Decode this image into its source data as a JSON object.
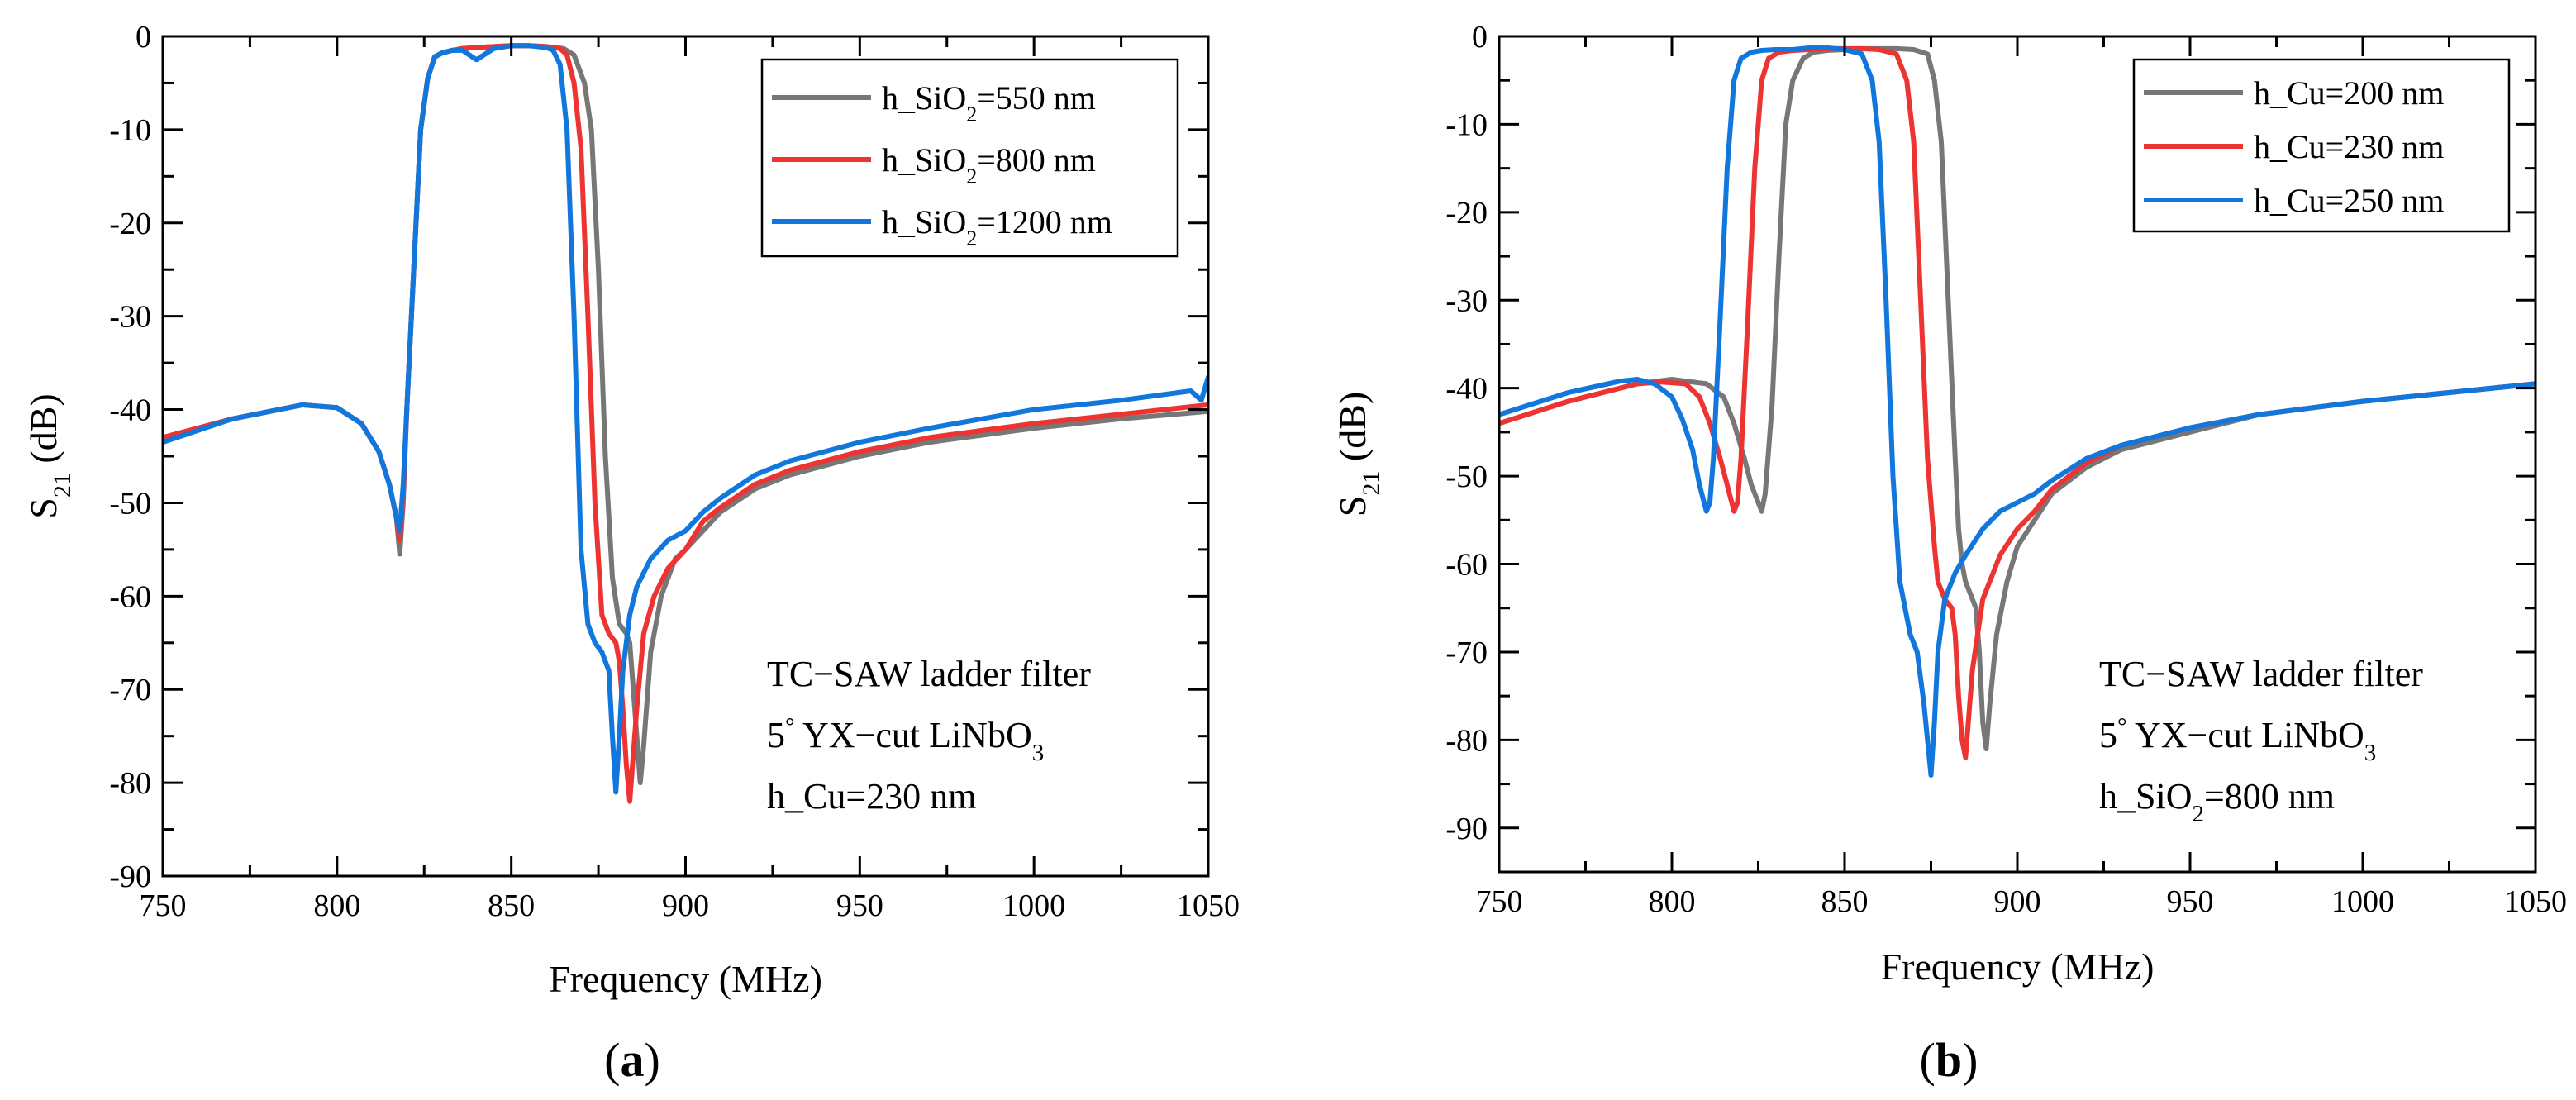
{
  "chart_data": [
    {
      "panel_label": "a",
      "type": "line",
      "title": "",
      "xlabel": "Frequency (MHz)",
      "ylabel_main": "S",
      "ylabel_sub": "21",
      "ylabel_unit": " (dB)",
      "xlim": [
        750,
        1050
      ],
      "ylim": [
        -90,
        0
      ],
      "xticks": [
        750,
        800,
        850,
        900,
        950,
        1000,
        1050
      ],
      "yticks": [
        0,
        -10,
        -20,
        -30,
        -40,
        -50,
        -60,
        -70,
        -80,
        -90
      ],
      "grid": false,
      "legend_position": "top-right",
      "annotation": [
        {
          "parts": [
            {
              "t": "TC−SAW ladder filter"
            }
          ]
        },
        {
          "parts": [
            {
              "t": "5"
            },
            {
              "t": "°",
              "sup": true
            },
            {
              "t": " YX−cut LiNbO"
            },
            {
              "t": "3",
              "sub": true
            }
          ]
        },
        {
          "parts": [
            {
              "t": "h_Cu=230 nm"
            }
          ]
        }
      ],
      "series": [
        {
          "legend": [
            {
              "t": "h_SiO"
            },
            {
              "t": "2",
              "sub": true
            },
            {
              "t": "=550 nm"
            }
          ],
          "color": "#777777",
          "x": [
            750,
            770,
            790,
            800,
            807,
            812,
            815,
            817,
            818,
            819,
            820,
            822,
            824,
            826,
            828,
            830,
            833,
            836,
            840,
            845,
            850,
            855,
            860,
            865,
            868,
            871,
            873,
            875,
            877,
            879,
            881,
            883,
            884,
            885,
            886,
            887,
            888,
            890,
            893,
            897,
            900,
            905,
            910,
            920,
            930,
            950,
            970,
            1000,
            1025,
            1050
          ],
          "y": [
            -43,
            -41,
            -39.5,
            -39.8,
            -41.5,
            -44.5,
            -48,
            -51.5,
            -55.5,
            -50,
            -40,
            -25,
            -10,
            -4.5,
            -2.2,
            -1.8,
            -1.5,
            -1.3,
            -1.2,
            -1.1,
            -1,
            -1,
            -1.1,
            -1.3,
            -2,
            -5,
            -10,
            -25,
            -45,
            -58,
            -63,
            -64,
            -65,
            -70,
            -75,
            -80,
            -76,
            -66,
            -60,
            -56,
            -55,
            -53,
            -51,
            -48.5,
            -47,
            -45,
            -43.5,
            -42,
            -41,
            -40.2
          ]
        },
        {
          "legend": [
            {
              "t": "h_SiO"
            },
            {
              "t": "2",
              "sub": true
            },
            {
              "t": "=800 nm"
            }
          ],
          "color": "#ee3333",
          "x": [
            750,
            770,
            790,
            800,
            807,
            812,
            815,
            817,
            818,
            819,
            820,
            822,
            824,
            826,
            828,
            830,
            833,
            836,
            840,
            845,
            850,
            855,
            860,
            864,
            866,
            868,
            870,
            872,
            874,
            876,
            878,
            880,
            881,
            882,
            883,
            884,
            886,
            888,
            891,
            895,
            900,
            905,
            910,
            920,
            930,
            950,
            970,
            1000,
            1025,
            1050
          ],
          "y": [
            -43,
            -41,
            -39.5,
            -39.8,
            -41.5,
            -44.5,
            -48,
            -51.5,
            -54,
            -49,
            -40,
            -25,
            -10,
            -4.5,
            -2.2,
            -1.8,
            -1.5,
            -1.3,
            -1.2,
            -1.1,
            -1,
            -1,
            -1.1,
            -1.3,
            -2,
            -5,
            -12,
            -30,
            -50,
            -62,
            -64,
            -65,
            -67,
            -72,
            -78,
            -82,
            -72,
            -64,
            -60,
            -57,
            -55,
            -52,
            -50.5,
            -48,
            -46.5,
            -44.5,
            -43,
            -41.5,
            -40.5,
            -39.5
          ]
        },
        {
          "legend": [
            {
              "t": "h_SiO"
            },
            {
              "t": "2",
              "sub": true
            },
            {
              "t": "=1200 nm"
            }
          ],
          "color": "#1177dd",
          "x": [
            750,
            770,
            790,
            800,
            807,
            812,
            815,
            817,
            818,
            819,
            820,
            822,
            824,
            826,
            828,
            830,
            833,
            836,
            840,
            845,
            850,
            855,
            860,
            862,
            864,
            866,
            868,
            870,
            872,
            874,
            876,
            878,
            879,
            880,
            881,
            882,
            884,
            886,
            890,
            895,
            900,
            905,
            910,
            920,
            930,
            950,
            970,
            1000,
            1025,
            1045,
            1048,
            1050
          ],
          "y": [
            -43.5,
            -41,
            -39.5,
            -39.8,
            -41.5,
            -44.5,
            -48,
            -51.5,
            -53,
            -48,
            -40,
            -25,
            -10,
            -4.5,
            -2.2,
            -1.8,
            -1.5,
            -1.5,
            -2.5,
            -1.3,
            -1,
            -1,
            -1.2,
            -1.5,
            -3,
            -10,
            -30,
            -55,
            -63,
            -65,
            -66,
            -68,
            -75,
            -81,
            -75,
            -68,
            -62,
            -59,
            -56,
            -54,
            -53,
            -51,
            -49.5,
            -47,
            -45.5,
            -43.5,
            -42,
            -40,
            -39,
            -38,
            -39,
            -36.5
          ]
        }
      ]
    },
    {
      "panel_label": "b",
      "type": "line",
      "title": "",
      "xlabel": "Frequency (MHz)",
      "ylabel_main": "S",
      "ylabel_sub": "21",
      "ylabel_unit": " (dB)",
      "xlim": [
        750,
        1050
      ],
      "ylim": [
        -95,
        0
      ],
      "xticks": [
        750,
        800,
        850,
        900,
        950,
        1000,
        1050
      ],
      "yticks": [
        0,
        -10,
        -20,
        -30,
        -40,
        -50,
        -60,
        -70,
        -80,
        -90
      ],
      "grid": false,
      "legend_position": "top-right",
      "annotation": [
        {
          "parts": [
            {
              "t": "TC−SAW ladder filter"
            }
          ]
        },
        {
          "parts": [
            {
              "t": "5"
            },
            {
              "t": "°",
              "sup": true
            },
            {
              "t": " YX−cut LiNbO"
            },
            {
              "t": "3",
              "sub": true
            }
          ]
        },
        {
          "parts": [
            {
              "t": "h_SiO"
            },
            {
              "t": "2",
              "sub": true
            },
            {
              "t": "=800 nm"
            }
          ]
        }
      ],
      "series": [
        {
          "legend": [
            {
              "t": "h_Cu=200 nm"
            }
          ],
          "color": "#777777",
          "x": [
            750,
            770,
            790,
            800,
            810,
            815,
            818,
            821,
            823,
            825,
            826,
            827,
            829,
            831,
            833,
            835,
            838,
            841,
            845,
            850,
            855,
            860,
            865,
            870,
            874,
            876,
            878,
            880,
            882,
            883,
            884,
            885,
            886,
            887,
            888,
            889,
            890,
            891,
            892,
            894,
            897,
            900,
            905,
            910,
            920,
            930,
            950,
            970,
            1000,
            1025,
            1050
          ],
          "y": [
            -44,
            -41.5,
            -39.5,
            -39,
            -39.5,
            -41,
            -44,
            -48,
            -51,
            -53,
            -54,
            -52,
            -42,
            -25,
            -10,
            -5,
            -2.5,
            -1.8,
            -1.6,
            -1.5,
            -1.4,
            -1.4,
            -1.4,
            -1.5,
            -2,
            -5,
            -12,
            -30,
            -48,
            -56,
            -60,
            -62,
            -63,
            -64,
            -65,
            -70,
            -78,
            -81,
            -76,
            -68,
            -62,
            -58,
            -55,
            -52,
            -49,
            -47,
            -45,
            -43,
            -41.5,
            -40.5,
            -39.5
          ]
        },
        {
          "legend": [
            {
              "t": "h_Cu=230 nm"
            }
          ],
          "color": "#ee3333",
          "x": [
            750,
            770,
            790,
            797,
            804,
            808,
            811,
            814,
            816,
            818,
            819,
            820,
            822,
            824,
            826,
            828,
            831,
            835,
            840,
            845,
            850,
            855,
            860,
            865,
            868,
            870,
            872,
            874,
            876,
            877,
            879,
            881,
            882,
            883,
            884,
            885,
            887,
            890,
            895,
            900,
            905,
            910,
            920,
            930,
            950,
            970,
            1000,
            1025,
            1050
          ],
          "y": [
            -44,
            -41.5,
            -39.5,
            -39.3,
            -39.5,
            -41,
            -44,
            -48,
            -51,
            -54,
            -53,
            -48,
            -32,
            -15,
            -5,
            -2.5,
            -1.8,
            -1.6,
            -1.5,
            -1.4,
            -1.4,
            -1.4,
            -1.5,
            -2,
            -5,
            -12,
            -30,
            -48,
            -58,
            -62,
            -64,
            -65,
            -68,
            -75,
            -80,
            -82,
            -72,
            -64,
            -59,
            -56,
            -54,
            -51.5,
            -48.5,
            -46.5,
            -44.5,
            -43,
            -41.5,
            -40.5,
            -39.5
          ]
        },
        {
          "legend": [
            {
              "t": "h_Cu=250 nm"
            }
          ],
          "color": "#1177dd",
          "x": [
            750,
            770,
            785,
            790,
            795,
            800,
            803,
            806,
            808,
            810,
            811,
            812,
            814,
            816,
            818,
            820,
            823,
            826,
            830,
            835,
            840,
            845,
            850,
            855,
            858,
            860,
            862,
            864,
            866,
            867,
            868,
            869,
            871,
            873,
            874,
            875,
            876,
            877,
            879,
            882,
            885,
            890,
            895,
            900,
            905,
            910,
            920,
            930,
            950,
            970,
            1000,
            1025,
            1050
          ],
          "y": [
            -43,
            -40.5,
            -39.2,
            -39,
            -39.5,
            -41,
            -43.5,
            -47,
            -51,
            -54,
            -53,
            -48,
            -32,
            -15,
            -5,
            -2.5,
            -1.8,
            -1.6,
            -1.5,
            -1.5,
            -1.3,
            -1.3,
            -1.5,
            -2,
            -5,
            -12,
            -30,
            -50,
            -62,
            -64,
            -66,
            -68,
            -70,
            -76,
            -80,
            -84,
            -78,
            -70,
            -64,
            -61,
            -59,
            -56,
            -54,
            -53,
            -52,
            -50.5,
            -48,
            -46.5,
            -44.5,
            -43,
            -41.5,
            -40.5,
            -39.5
          ]
        }
      ]
    }
  ]
}
